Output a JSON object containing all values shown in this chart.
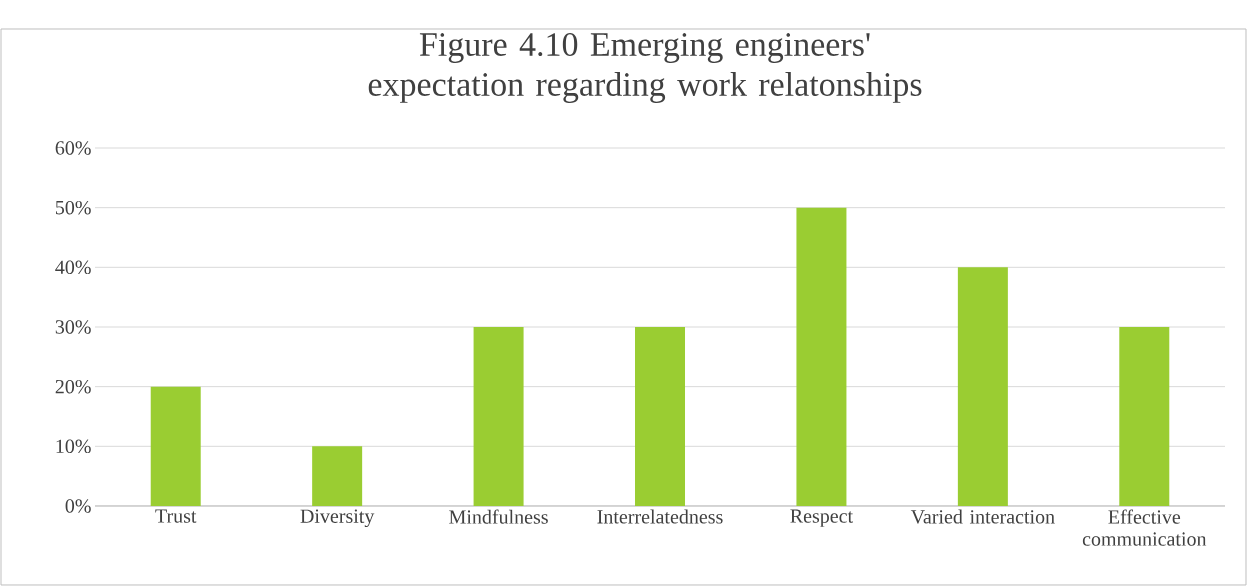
{
  "chart_data": {
    "type": "bar",
    "title": "Figure 4.10 Emerging engineers' expectation regarding work relatonships",
    "categories": [
      "Trust",
      "Diversity",
      "Mindfulness",
      "Interrelatedness",
      "Respect",
      "Varied interaction",
      "Effective communication"
    ],
    "values": [
      20,
      10,
      30,
      30,
      50,
      40,
      30
    ],
    "color": "#9acd32",
    "ylim": [
      0,
      60
    ],
    "yticks": [
      {
        "value": 0,
        "label": "0%"
      },
      {
        "value": 10,
        "label": "10%"
      },
      {
        "value": 20,
        "label": "20%"
      },
      {
        "value": 30,
        "label": "30%"
      },
      {
        "value": 40,
        "label": "40%"
      },
      {
        "value": 50,
        "label": "50%"
      },
      {
        "value": 60,
        "label": "60%"
      }
    ],
    "grid": "y"
  }
}
